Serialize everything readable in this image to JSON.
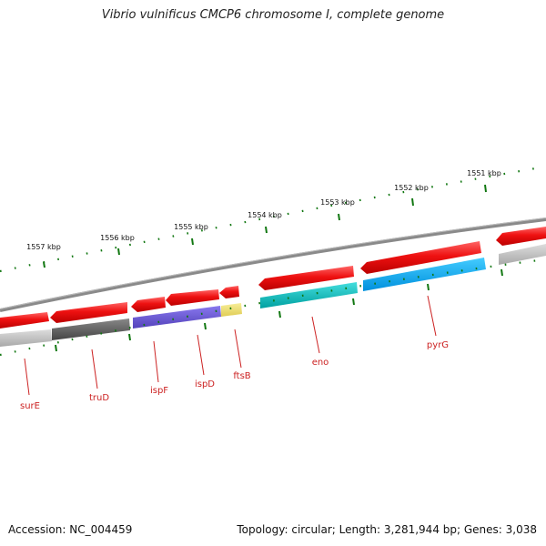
{
  "title": "Vibrio vulnificus CMCP6 chromosome I, complete genome",
  "footer": {
    "accession": "Accession: NC_004459",
    "summary": "Topology: circular; Length: 3,281,944 bp; Genes: 3,038"
  },
  "scale_labels": [
    "1557 kbp",
    "1556 kbp",
    "1555 kbp",
    "1554 kbp",
    "1553 kbp",
    "1552 kbp",
    "1551 kbp"
  ],
  "gene_labels": [
    "surE",
    "truD",
    "ispF",
    "ispD",
    "ftsB",
    "eno",
    "pyrG"
  ],
  "colors": {
    "cds": "#ee1111",
    "backbone": "#888888",
    "tick": "#117711",
    "label": "#cc2222",
    "cog_gray": "#555555",
    "cog_light_gray": "#b8b8b8",
    "cog_purple": "#6655cc",
    "cog_yellow": "#eedd77",
    "cog_teal": "#11bbbb",
    "cog_blue": "#11aaee"
  }
}
